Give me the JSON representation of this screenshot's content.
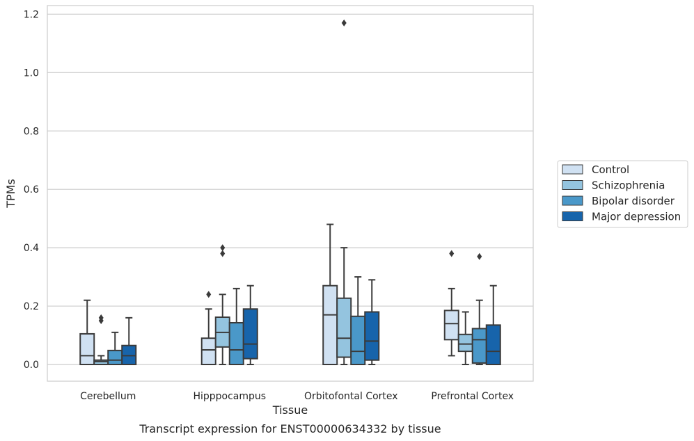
{
  "caption": "Transcript expression for ENST00000634332 by tissue",
  "chart_data": {
    "type": "box",
    "xlabel": "Tissue",
    "ylabel": "TPMs",
    "ylim": [
      -0.06,
      1.23
    ],
    "yticks": [
      0.0,
      0.2,
      0.4,
      0.6,
      0.8,
      1.0,
      1.2
    ],
    "ytick_labels": [
      "0.0",
      "0.2",
      "0.4",
      "0.6",
      "0.8",
      "1.0",
      "1.2"
    ],
    "grid": "horizontal",
    "legend_position": "right",
    "categories": [
      "Cerebellum",
      "Hipppocampus",
      "Orbitofontal Cortex",
      "Prefrontal Cortex"
    ],
    "series": [
      {
        "name": "Control",
        "color": "#d0e1f2",
        "boxes": [
          {
            "whislo": 0.0,
            "q1": 0.0,
            "med": 0.03,
            "q3": 0.105,
            "whishi": 0.22,
            "fliers": []
          },
          {
            "whislo": 0.0,
            "q1": 0.0,
            "med": 0.05,
            "q3": 0.09,
            "whishi": 0.19,
            "fliers": [
              0.24
            ]
          },
          {
            "whislo": 0.0,
            "q1": 0.0,
            "med": 0.17,
            "q3": 0.27,
            "whishi": 0.48,
            "fliers": []
          },
          {
            "whislo": 0.03,
            "q1": 0.085,
            "med": 0.14,
            "q3": 0.185,
            "whishi": 0.26,
            "fliers": [
              0.38
            ]
          }
        ]
      },
      {
        "name": "Schizophrenia",
        "color": "#94c4df",
        "boxes": [
          {
            "whislo": 0.0,
            "q1": 0.0,
            "med": 0.01,
            "q3": 0.015,
            "whishi": 0.03,
            "fliers": [
              0.15,
              0.16
            ]
          },
          {
            "whislo": 0.0,
            "q1": 0.06,
            "med": 0.11,
            "q3": 0.162,
            "whishi": 0.24,
            "fliers": [
              0.38,
              0.4
            ]
          },
          {
            "whislo": 0.0,
            "q1": 0.025,
            "med": 0.09,
            "q3": 0.227,
            "whishi": 0.4,
            "fliers": [
              1.17
            ]
          },
          {
            "whislo": 0.0,
            "q1": 0.045,
            "med": 0.07,
            "q3": 0.103,
            "whishi": 0.18,
            "fliers": []
          }
        ]
      },
      {
        "name": "Bipolar disorder",
        "color": "#4a98c9",
        "boxes": [
          {
            "whislo": 0.0,
            "q1": 0.0,
            "med": 0.015,
            "q3": 0.048,
            "whishi": 0.11,
            "fliers": []
          },
          {
            "whislo": 0.0,
            "q1": 0.0,
            "med": 0.05,
            "q3": 0.143,
            "whishi": 0.26,
            "fliers": []
          },
          {
            "whislo": 0.0,
            "q1": 0.0,
            "med": 0.045,
            "q3": 0.165,
            "whishi": 0.3,
            "fliers": []
          },
          {
            "whislo": 0.0,
            "q1": 0.005,
            "med": 0.085,
            "q3": 0.123,
            "whishi": 0.22,
            "fliers": [
              0.37
            ]
          }
        ]
      },
      {
        "name": "Major depression",
        "color": "#1764ab",
        "boxes": [
          {
            "whislo": 0.0,
            "q1": 0.0,
            "med": 0.03,
            "q3": 0.065,
            "whishi": 0.16,
            "fliers": []
          },
          {
            "whislo": 0.0,
            "q1": 0.02,
            "med": 0.07,
            "q3": 0.19,
            "whishi": 0.27,
            "fliers": []
          },
          {
            "whislo": 0.0,
            "q1": 0.015,
            "med": 0.08,
            "q3": 0.18,
            "whishi": 0.29,
            "fliers": []
          },
          {
            "whislo": 0.0,
            "q1": 0.0,
            "med": 0.045,
            "q3": 0.135,
            "whishi": 0.27,
            "fliers": []
          }
        ]
      }
    ]
  }
}
